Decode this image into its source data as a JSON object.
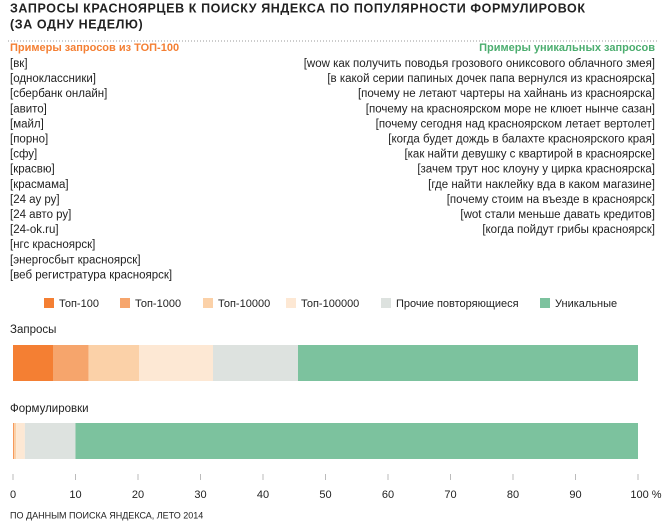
{
  "chart_data": {
    "type": "stacked-bar",
    "title": [
      "ЗАПРОСЫ КРАСНОЯРЦЕВ К ПОИСКУ ЯНДЕКСА ПО ПОПУЛЯРНОСТИ ФОРМУЛИРОВОК",
      "(ЗА ОДНУ НЕДЕЛЮ)"
    ],
    "left_list": {
      "title": "Примеры запросов из ТОП-100",
      "color": "#f47f33",
      "items": [
        "[вк]",
        "[одноклассники]",
        "[сбербанк онлайн]",
        "[авито]",
        "[майл]",
        "[порно]",
        "[сфу]",
        "[красвю]",
        "[красмама]",
        "[24 ау ру]",
        "[24 авто ру]",
        "[24-ok.ru]",
        "[нгс красноярск]",
        "[энергосбыт красноярск]",
        "[веб регистратура красноярск]"
      ]
    },
    "right_list": {
      "title": "Примеры уникальных запросов",
      "color": "#4cad6f",
      "items": [
        "[wow как получить поводья грозового ониксового облачного змея]",
        "[в какой серии папиных дочек папа вернулся из красноярска]",
        "[почему не летают чартеры на хайнань из красноярска]",
        "[почему на красноярском море не клюет нынче сазан]",
        "[почему сегодня над красноярском летает вертолет]",
        "[когда будет дождь в балахте красноярского края]",
        "[как найти девушку с квартирой в красноярске]",
        "[зачем трут нос клоуну у цирка красноярска]",
        "[где найти наклейку вда в каком магазине]",
        "[почему стоим на въезде в красноярск]",
        "[wot стали меньше давать кредитов]",
        "[когда пойдут грибы красноярск]"
      ]
    },
    "categories": [
      "Запросы",
      "Формулировки"
    ],
    "series": [
      {
        "name": "Топ-100",
        "color": "#f47f33",
        "values": [
          6.4,
          0.1
        ]
      },
      {
        "name": "Топ-1000",
        "color": "#f6a56c",
        "values": [
          5.7,
          0.1
        ]
      },
      {
        "name": "Топ-10000",
        "color": "#fbd1a8",
        "values": [
          8.1,
          0.3
        ]
      },
      {
        "name": "Топ-100000",
        "color": "#fde8d4",
        "values": [
          11.8,
          1.4
        ]
      },
      {
        "name": "Прочие повторяющиеся",
        "color": "#dde2df",
        "values": [
          13.6,
          8.1
        ]
      },
      {
        "name": "Уникальные",
        "color": "#7cc29e",
        "values": [
          54.4,
          90
        ]
      }
    ],
    "xlim": [
      0,
      100
    ],
    "xticks": [
      0,
      10,
      20,
      30,
      40,
      50,
      60,
      70,
      80,
      90,
      {
        "value": 100,
        "label": "100 %"
      }
    ],
    "source": "ПО ДАННЫМ ПОИСКА ЯНДЕКСА, ЛЕТО 2014"
  }
}
